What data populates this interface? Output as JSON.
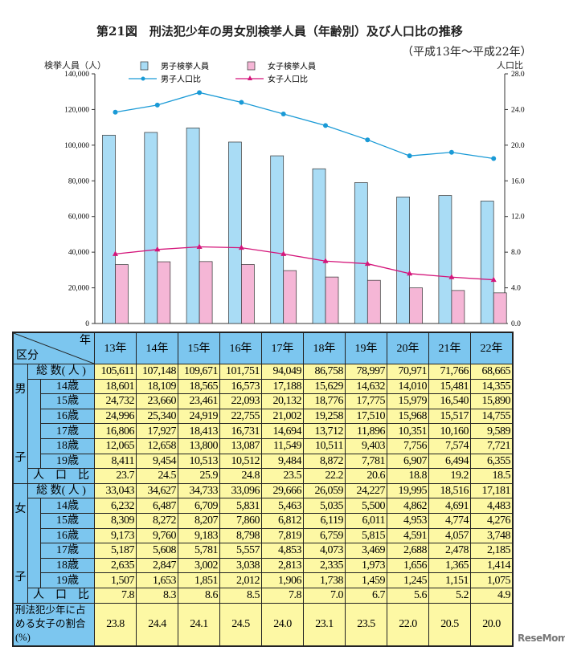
{
  "title": "第21図　刑法犯少年の男女別検挙人員（年齢別）及び人口比の推移",
  "subtitle": "（平成13年～平成22年）",
  "watermark": "ReseMom",
  "chart_data": {
    "type": "bar+line",
    "categories": [
      "13年",
      "14年",
      "15年",
      "16年",
      "17年",
      "18年",
      "19年",
      "20年",
      "21年",
      "22年"
    ],
    "y_left": {
      "label": "検挙人員（人）",
      "range": [
        0,
        140000
      ],
      "ticks": [
        "0",
        "20,000",
        "40,000",
        "60,000",
        "80,000",
        "100,000",
        "120,000",
        "140,000"
      ]
    },
    "y_right": {
      "label": "人口比",
      "range": [
        0,
        28
      ],
      "ticks": [
        "0.0",
        "4.0",
        "8.0",
        "12.0",
        "16.0",
        "20.0",
        "24.0",
        "28.0"
      ]
    },
    "legend": "top",
    "series": [
      {
        "name": "男子検挙人員",
        "kind": "bar",
        "axis": "left",
        "color": "#a9dcf5",
        "values": [
          105611,
          107148,
          109671,
          101751,
          94049,
          86758,
          78997,
          70971,
          71766,
          68665
        ]
      },
      {
        "name": "女子検挙人員",
        "kind": "bar",
        "axis": "left",
        "color": "#f5b6d6",
        "values": [
          33043,
          34627,
          34733,
          33096,
          29666,
          26059,
          24227,
          19995,
          18516,
          17181
        ]
      },
      {
        "name": "男子人口比",
        "kind": "line",
        "marker": "circle",
        "axis": "right",
        "color": "#1a9ad6",
        "values": [
          23.7,
          24.5,
          25.9,
          24.8,
          23.5,
          22.2,
          20.6,
          18.8,
          19.2,
          18.5
        ]
      },
      {
        "name": "女子人口比",
        "kind": "line",
        "marker": "triangle",
        "axis": "right",
        "color": "#d4157a",
        "values": [
          7.8,
          8.3,
          8.6,
          8.5,
          7.8,
          7.0,
          6.7,
          5.6,
          5.2,
          4.9
        ]
      }
    ]
  },
  "table": {
    "corner_top": "年",
    "corner_bottom": "区分",
    "headers": [
      "13年",
      "14年",
      "15年",
      "16年",
      "17年",
      "18年",
      "19年",
      "20年",
      "21年",
      "22年"
    ],
    "male_label": [
      "男",
      "子"
    ],
    "female_label": [
      "女",
      "子"
    ],
    "total_label": "総 数( 人 )",
    "ratio_label": "人　口　比",
    "ages": [
      "14歳",
      "15歳",
      "16歳",
      "17歳",
      "18歳",
      "19歳"
    ],
    "male": {
      "total": [
        "105,611",
        "107,148",
        "109,671",
        "101,751",
        "94,049",
        "86,758",
        "78,997",
        "70,971",
        "71,766",
        "68,665"
      ],
      "rows": [
        [
          "18,601",
          "18,109",
          "18,565",
          "16,573",
          "17,188",
          "15,629",
          "14,632",
          "14,010",
          "15,481",
          "14,355"
        ],
        [
          "24,732",
          "23,660",
          "23,461",
          "22,093",
          "20,132",
          "18,776",
          "17,775",
          "15,979",
          "16,540",
          "15,890"
        ],
        [
          "24,996",
          "25,340",
          "24,919",
          "22,755",
          "21,002",
          "19,258",
          "17,510",
          "15,968",
          "15,517",
          "14,755"
        ],
        [
          "16,806",
          "17,927",
          "18,413",
          "16,731",
          "14,694",
          "13,712",
          "11,896",
          "10,351",
          "10,160",
          "9,589"
        ],
        [
          "12,065",
          "12,658",
          "13,800",
          "13,087",
          "11,549",
          "10,511",
          "9,403",
          "7,756",
          "7,574",
          "7,721"
        ],
        [
          "8,411",
          "9,454",
          "10,513",
          "10,512",
          "9,484",
          "8,872",
          "7,781",
          "6,907",
          "6,494",
          "6,355"
        ]
      ],
      "ratio": [
        "23.7",
        "24.5",
        "25.9",
        "24.8",
        "23.5",
        "22.2",
        "20.6",
        "18.8",
        "19.2",
        "18.5"
      ]
    },
    "female": {
      "total": [
        "33,043",
        "34,627",
        "34,733",
        "33,096",
        "29,666",
        "26,059",
        "24,227",
        "19,995",
        "18,516",
        "17,181"
      ],
      "rows": [
        [
          "6,232",
          "6,487",
          "6,709",
          "5,831",
          "5,463",
          "5,035",
          "5,500",
          "4,862",
          "4,691",
          "4,483"
        ],
        [
          "8,309",
          "8,272",
          "8,207",
          "7,860",
          "6,812",
          "6,119",
          "6,011",
          "4,953",
          "4,774",
          "4,276"
        ],
        [
          "9,173",
          "9,760",
          "9,183",
          "8,798",
          "7,819",
          "6,759",
          "5,815",
          "4,591",
          "4,057",
          "3,748"
        ],
        [
          "5,187",
          "5,608",
          "5,781",
          "5,557",
          "4,853",
          "4,073",
          "3,469",
          "2,688",
          "2,478",
          "2,185"
        ],
        [
          "2,635",
          "2,847",
          "3,002",
          "3,038",
          "2,813",
          "2,335",
          "1,973",
          "1,656",
          "1,365",
          "1,414"
        ],
        [
          "1,507",
          "1,653",
          "1,851",
          "2,012",
          "1,906",
          "1,738",
          "1,459",
          "1,245",
          "1,151",
          "1,075"
        ]
      ],
      "ratio": [
        "7.8",
        "8.3",
        "8.6",
        "8.5",
        "7.8",
        "7.0",
        "6.7",
        "5.6",
        "5.2",
        "4.9"
      ]
    },
    "share_label": "刑法犯少年に占める女子の割合(%)",
    "share": [
      "23.8",
      "24.4",
      "24.1",
      "24.5",
      "24.0",
      "23.1",
      "23.5",
      "22.0",
      "20.5",
      "20.0"
    ]
  }
}
